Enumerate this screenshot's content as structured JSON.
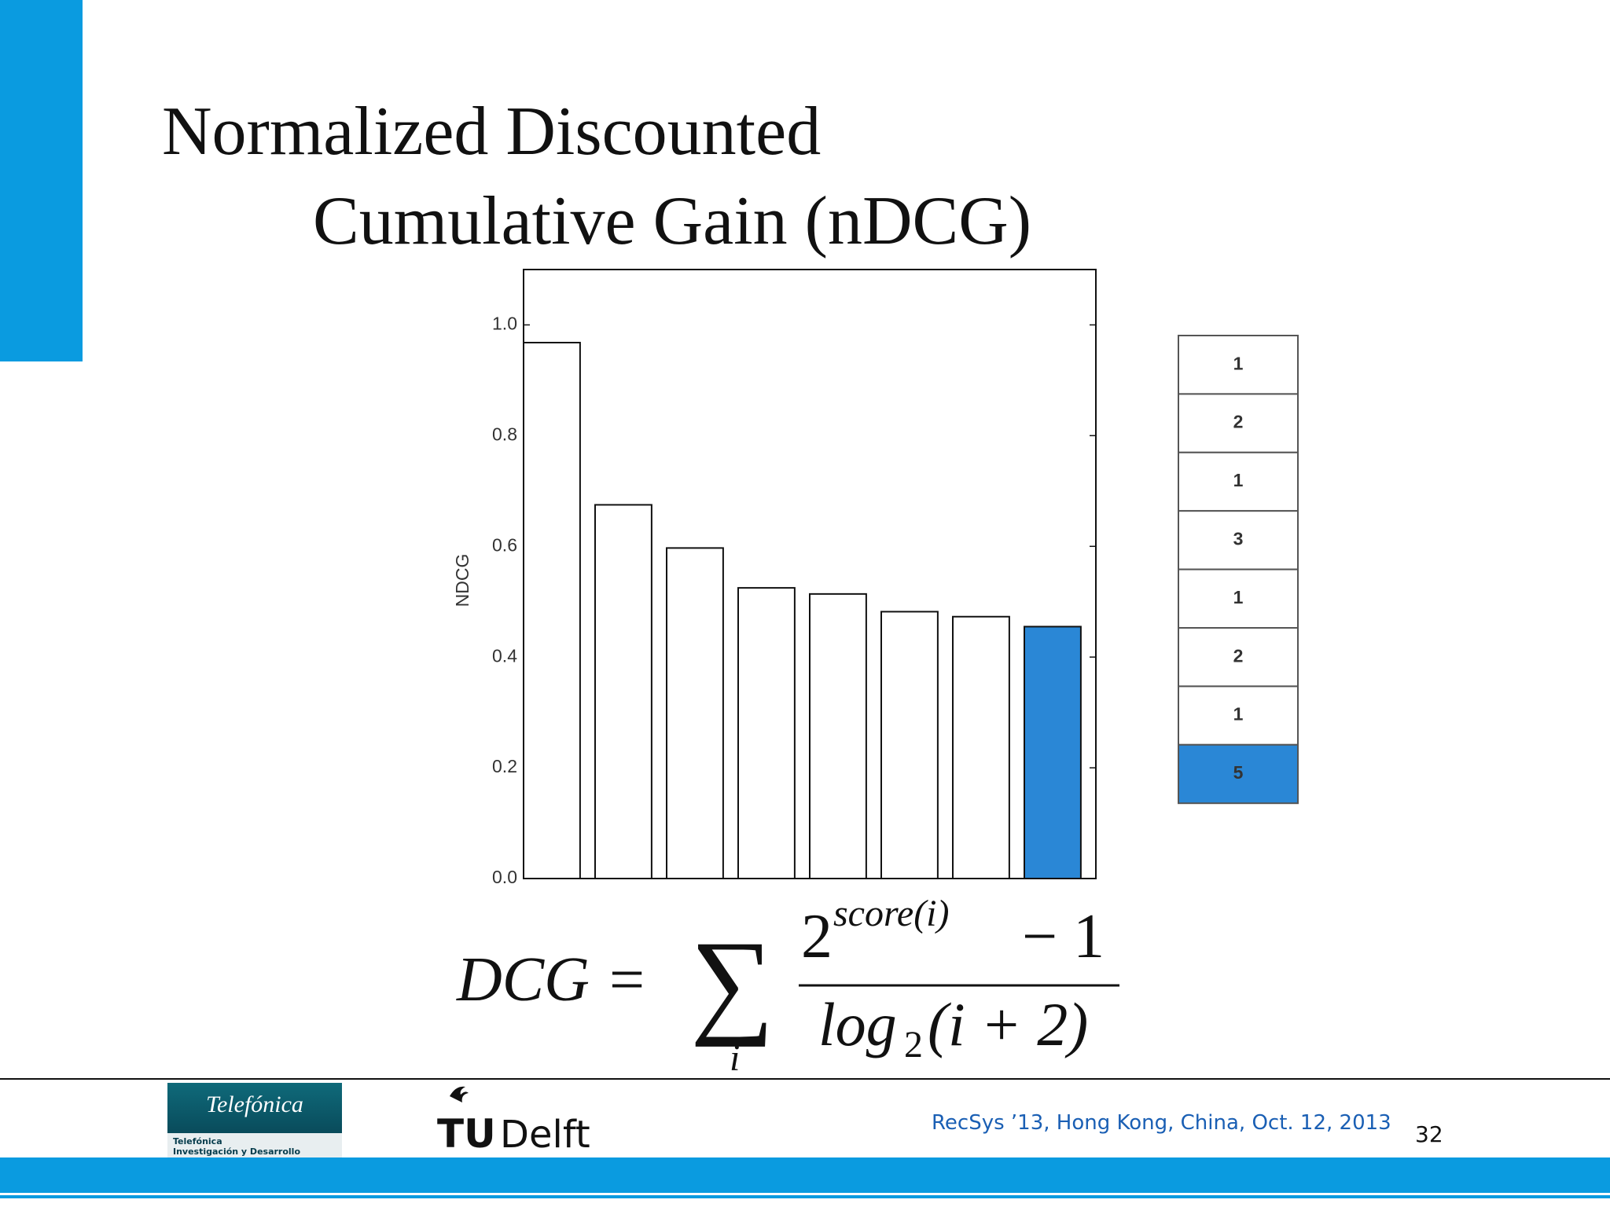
{
  "slide": {
    "title_line1": "Normalized Discounted",
    "title_line2": "Cumulative Gain (nDCG)",
    "footer": "RecSys ’13, Hong Kong, China, Oct. 12, 2013",
    "page_number": "32"
  },
  "logos": {
    "telefonica": "Telefónica",
    "telefonica_sub1": "Telefónica",
    "telefonica_sub2": "Investigación y Desarrollo",
    "tu": "TU",
    "delft": "Delft"
  },
  "formula": {
    "lhs": "DCG =",
    "sum": "∑",
    "index": "i",
    "base": "2",
    "exponent": "score(i)",
    "minus_one": "− 1",
    "log": "log",
    "log_base": "2",
    "log_arg": "(i + 2)"
  },
  "ranking": {
    "scores": [
      1,
      2,
      1,
      3,
      1,
      2,
      1,
      5
    ],
    "colors": [
      "#ffffff",
      "#ffffff",
      "#ffffff",
      "#ffffff",
      "#ffffff",
      "#ffffff",
      "#ffffff",
      "#2a87d6"
    ]
  },
  "chart_data": {
    "type": "bar",
    "ylabel": "NDCG",
    "values": [
      0.968,
      0.675,
      0.597,
      0.525,
      0.514,
      0.482,
      0.473,
      0.455
    ],
    "colors": [
      "#ffffff",
      "#ffffff",
      "#ffffff",
      "#ffffff",
      "#ffffff",
      "#ffffff",
      "#ffffff",
      "#2a87d6"
    ],
    "ylim": [
      0,
      1.1
    ],
    "yticks": [
      {
        "value": 0,
        "label": "0.0"
      },
      0.2,
      0.4,
      0.6,
      0.8,
      {
        "value": 1,
        "label": "1.0"
      }
    ]
  }
}
